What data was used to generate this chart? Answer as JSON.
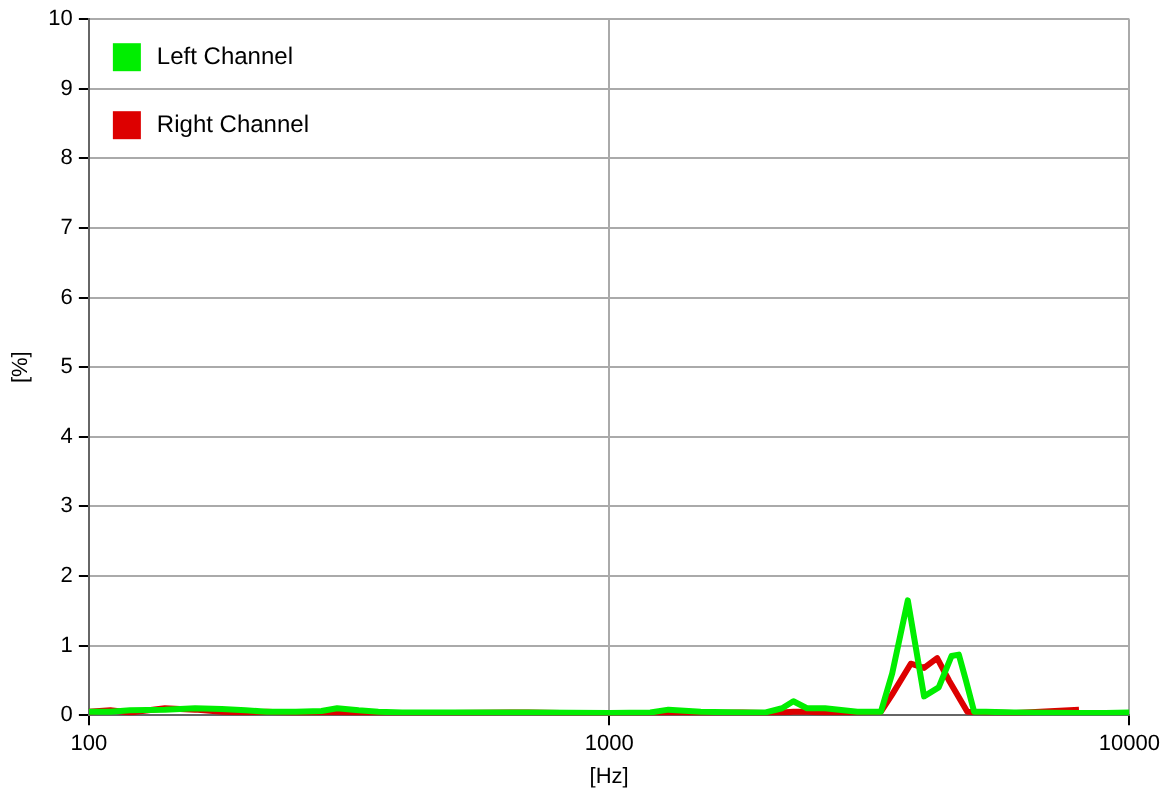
{
  "chart_data": {
    "type": "line",
    "xlabel": "[Hz]",
    "ylabel": "[%]",
    "log": "x",
    "xlim": [
      100,
      10000
    ],
    "xticks": [
      100,
      1000,
      10000
    ],
    "ylim": [
      0,
      10
    ],
    "yticks": [
      0,
      1,
      2,
      3,
      4,
      5,
      6,
      7,
      8,
      9,
      10
    ],
    "grid": true,
    "legend": "top left",
    "marker": "none",
    "line_style": "solid",
    "series": [
      {
        "name": "Left Channel",
        "color": "#00ee00",
        "x": [
          100,
          110,
          120,
          140,
          160,
          180,
          200,
          220,
          250,
          280,
          300,
          330,
          360,
          400,
          500,
          700,
          1000,
          1200,
          1300,
          1500,
          1800,
          2000,
          2150,
          2260,
          2400,
          2600,
          3000,
          3330,
          3500,
          3750,
          3900,
          4030,
          4300,
          4550,
          4700,
          4850,
          5030,
          5300,
          6000,
          8000,
          9000,
          10000
        ],
        "values": [
          0.05,
          0.05,
          0.07,
          0.08,
          0.1,
          0.09,
          0.07,
          0.05,
          0.05,
          0.06,
          0.1,
          0.07,
          0.05,
          0.04,
          0.04,
          0.04,
          0.03,
          0.04,
          0.08,
          0.05,
          0.04,
          0.04,
          0.1,
          0.2,
          0.1,
          0.1,
          0.05,
          0.05,
          0.6,
          1.65,
          0.9,
          0.27,
          0.4,
          0.85,
          0.87,
          0.5,
          0.05,
          0.05,
          0.04,
          0.03,
          0.03,
          0.04
        ]
      },
      {
        "name": "Right Channel",
        "color": "#dd0000",
        "x": [
          100,
          110,
          120,
          140,
          160,
          180,
          200,
          220,
          250,
          280,
          300,
          330,
          360,
          400,
          500,
          700,
          1000,
          1200,
          1300,
          1500,
          1800,
          2000,
          2150,
          2260,
          2400,
          2600,
          3000,
          3330,
          3500,
          3800,
          4030,
          4270,
          4500,
          4880,
          5300,
          6000,
          8000
        ],
        "values": [
          0.05,
          0.07,
          0.04,
          0.1,
          0.08,
          0.05,
          0.04,
          0.05,
          0.03,
          0.04,
          0.04,
          0.03,
          0.02,
          0.02,
          0.03,
          0.04,
          0.02,
          0.02,
          0.04,
          0.03,
          0.04,
          0.03,
          0.04,
          0.05,
          0.05,
          0.04,
          0.04,
          0.05,
          0.3,
          0.74,
          0.68,
          0.82,
          0.5,
          0.05,
          0.04,
          0.03,
          0.08
        ]
      }
    ]
  }
}
